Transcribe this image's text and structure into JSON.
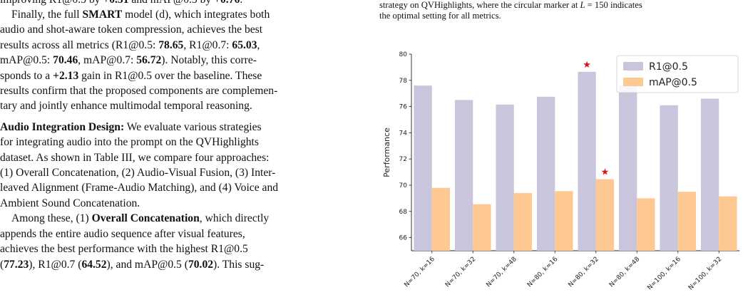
{
  "left": {
    "line_top": [
      "improving R1@0.5 by ",
      "+0.51",
      " and mAP@0.5 by ",
      "+0.76",
      "."
    ],
    "smart_para": [
      [
        "Finally, the full ",
        "SMART",
        " model (d), which integrates both"
      ],
      [
        "audio and shot-aware token compression, achieves the best"
      ],
      [
        "results across all metrics (R1@0.5: ",
        "78.65",
        ", R1@0.7: ",
        "65.03",
        ","
      ],
      [
        "mAP@0.5: ",
        "70.46",
        ", mAP@0.7: ",
        "56.72",
        "). Notably, this corre-"
      ],
      [
        "sponds to a ",
        "+2.13",
        " gain in R1@0.5 over the baseline. These"
      ],
      [
        "results confirm that the proposed components are complemen-"
      ],
      [
        "tary and jointly enhance multimodal temporal reasoning."
      ]
    ],
    "audio_heading": "Audio Integration Design:",
    "audio_lines": [
      " We evaluate various strategies",
      "for integrating audio into the prompt on the QVHighlights",
      "dataset. As shown in Table III, we compare four approaches:",
      "(1) Overall Concatenation, (2) Audio-Visual Fusion, (3) Inter-",
      "leaved Alignment (Frame-Audio Matching), and (4) Voice and",
      "Ambient Sound Concatenation."
    ],
    "among_lines": [
      [
        "Among these, (1) ",
        "Overall Concatenation",
        ", which directly"
      ],
      [
        "appends the entire audio sequence after visual features,"
      ],
      [
        "achieves the best performance with the highest R1@0.5"
      ],
      [
        "(",
        "77.23",
        "), R1@0.7 (",
        "64.52",
        "), and mAP@0.5 (",
        "70.02",
        "). This sug-"
      ]
    ]
  },
  "caption": {
    "line1_a": "strategy on QVHighlights, where the circular marker at ",
    "line1_var": "L",
    "line1_b": " = 150 indicates",
    "line2": "the optimal setting for all metrics."
  },
  "chart_data": {
    "type": "bar",
    "categories": [
      "N=70, k=16",
      "N=70, k=32",
      "N=70, k=48",
      "N=80, k=16",
      "N=80, k=32",
      "N=80, k=48",
      "N=100, k=16",
      "N=100, k=32"
    ],
    "series": [
      {
        "name": "R1@0.5",
        "color": "#c9c5dc",
        "values": [
          77.6,
          76.5,
          76.15,
          76.75,
          78.65,
          77.6,
          76.1,
          76.6
        ]
      },
      {
        "name": "mAP@0.5",
        "color": "#fdc892",
        "values": [
          69.8,
          68.55,
          69.4,
          69.55,
          70.46,
          69.0,
          69.5,
          69.15
        ]
      }
    ],
    "ylabel": "Performance",
    "ylim": [
      65,
      80
    ],
    "yticks": [
      66,
      68,
      70,
      72,
      74,
      76,
      78,
      80
    ],
    "best_marker": {
      "category_index": 4,
      "symbol": "★",
      "color": "#e01010"
    },
    "legend_position": "top-right",
    "grid": false
  }
}
